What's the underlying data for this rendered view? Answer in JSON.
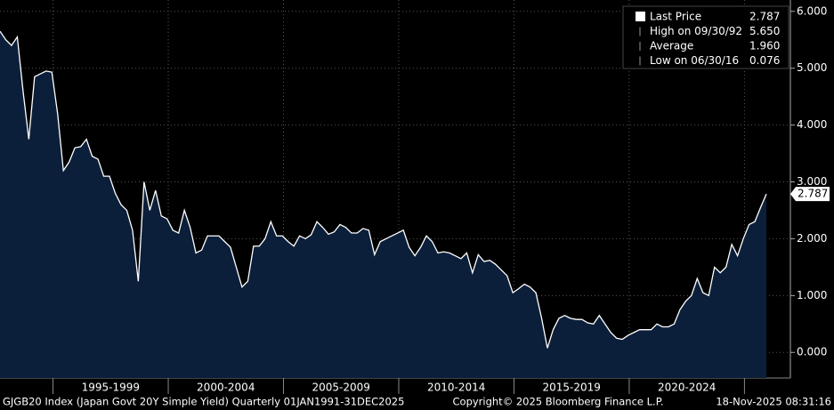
{
  "chart_data": {
    "type": "area",
    "series": [
      {
        "name": "Last Price",
        "color": "#ffffff",
        "fill": "#0c1f3a",
        "values": [
          5.65,
          5.5,
          5.4,
          5.55,
          4.6,
          3.75,
          4.85,
          4.9,
          4.95,
          4.93,
          4.2,
          3.2,
          3.35,
          3.6,
          3.62,
          3.75,
          3.45,
          3.4,
          3.1,
          3.1,
          2.8,
          2.6,
          2.5,
          2.15,
          1.25,
          3.0,
          2.5,
          2.85,
          2.4,
          2.35,
          2.15,
          2.1,
          2.5,
          2.2,
          1.75,
          1.8,
          2.05,
          2.05,
          2.05,
          1.95,
          1.85,
          1.5,
          1.15,
          1.25,
          1.87,
          1.87,
          2.0,
          2.3,
          2.05,
          2.05,
          1.95,
          1.87,
          2.05,
          2.0,
          2.07,
          2.3,
          2.2,
          2.08,
          2.12,
          2.25,
          2.2,
          2.1,
          2.1,
          2.18,
          2.15,
          1.72,
          1.95,
          2.0,
          2.05,
          2.1,
          2.15,
          1.85,
          1.7,
          1.85,
          2.05,
          1.95,
          1.75,
          1.77,
          1.75,
          1.7,
          1.65,
          1.75,
          1.4,
          1.72,
          1.6,
          1.62,
          1.55,
          1.45,
          1.35,
          1.05,
          1.12,
          1.2,
          1.15,
          1.05,
          0.6,
          0.076,
          0.4,
          0.6,
          0.65,
          0.6,
          0.58,
          0.58,
          0.52,
          0.5,
          0.65,
          0.5,
          0.35,
          0.25,
          0.23,
          0.3,
          0.35,
          0.4,
          0.4,
          0.4,
          0.5,
          0.45,
          0.45,
          0.5,
          0.75,
          0.9,
          1.0,
          1.3,
          1.05,
          1.0,
          1.5,
          1.4,
          1.5,
          1.9,
          1.7,
          2.0,
          2.25,
          2.3,
          2.55,
          2.787
        ]
      }
    ],
    "periods": [
      "1995-1999",
      "2000-2004",
      "2005-2009",
      "2010-2014",
      "2015-2019",
      "2020-2024"
    ],
    "ylim": [
      -0.45,
      6.2
    ],
    "yticks": [
      {
        "value": 0,
        "label": "0.000"
      },
      {
        "value": 1,
        "label": "1.000"
      },
      {
        "value": 2,
        "label": "2.000"
      },
      {
        "value": 3,
        "label": "3.000"
      },
      {
        "value": 4,
        "label": "4.000"
      },
      {
        "value": 5,
        "label": "5.000"
      },
      {
        "value": 6,
        "label": "6.000"
      }
    ],
    "last_value": 2.787,
    "last_value_label": "2.787",
    "legend": [
      {
        "label": "Last Price",
        "value": "2.787"
      },
      {
        "label": "High on 09/30/92",
        "value": "5.650"
      },
      {
        "label": "Average",
        "value": "1.960"
      },
      {
        "label": "Low on 06/30/16",
        "value": "0.076"
      }
    ],
    "grid": true
  },
  "footer": [
    "GJGB20 Index (Japan Govt 20Y Simple Yield) Quarterly 01JAN1991-31DEC2025",
    "Copyright© 2025 Bloomberg Finance L.P.",
    "18-Nov-2025 08:31:16"
  ]
}
